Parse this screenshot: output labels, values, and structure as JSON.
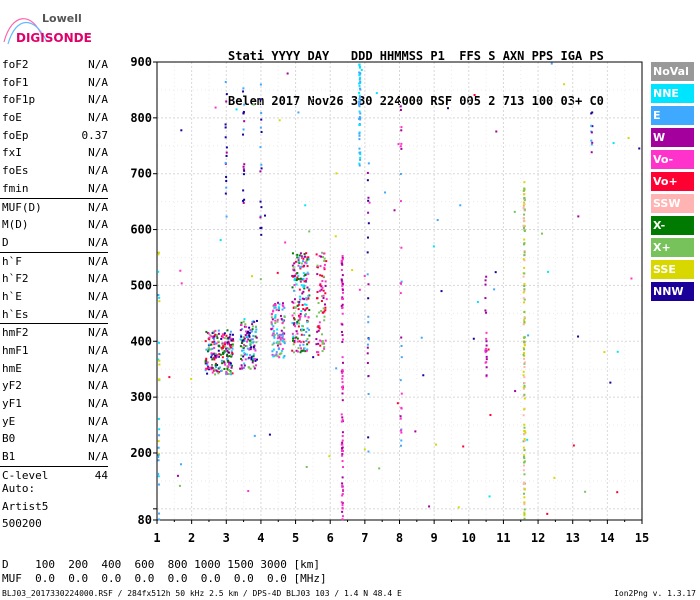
{
  "logo": {
    "top": "Lowell",
    "bottom": "DIGISONDE"
  },
  "header": {
    "line1": [
      "Stati",
      "YYYY",
      "DAY",
      "DDD",
      "HHMMSS",
      "P1",
      "FFS",
      "S",
      "AXN",
      "PPS",
      "IGA",
      "PS"
    ],
    "line2": [
      "Belem",
      "2017",
      "Nov26",
      "330",
      "224000",
      "RSF",
      "005",
      "2",
      "713",
      "100",
      "03+",
      "C0"
    ]
  },
  "params": [
    {
      "label": "foF2",
      "value": "N/A"
    },
    {
      "label": "foF1",
      "value": "N/A"
    },
    {
      "label": "foF1p",
      "value": "N/A"
    },
    {
      "label": "foE",
      "value": "N/A"
    },
    {
      "label": "foEp",
      "value": "0.37"
    },
    {
      "label": "fxI",
      "value": "N/A"
    },
    {
      "label": "foEs",
      "value": "N/A"
    },
    {
      "label": "fmin",
      "value": "N/A"
    },
    {
      "label": "MUF(D)",
      "value": "N/A"
    },
    {
      "label": "M(D)",
      "value": "N/A"
    },
    {
      "label": "D",
      "value": "N/A"
    },
    {
      "label": "h`F",
      "value": "N/A"
    },
    {
      "label": "h`F2",
      "value": "N/A"
    },
    {
      "label": "h`E",
      "value": "N/A"
    },
    {
      "label": "h`Es",
      "value": "N/A"
    },
    {
      "label": "hmF2",
      "value": "N/A"
    },
    {
      "label": "hmF1",
      "value": "N/A"
    },
    {
      "label": "hmE",
      "value": "N/A"
    },
    {
      "label": "yF2",
      "value": "N/A"
    },
    {
      "label": "yF1",
      "value": "N/A"
    },
    {
      "label": "yE",
      "value": "N/A"
    },
    {
      "label": "B0",
      "value": "N/A"
    },
    {
      "label": "B1",
      "value": "N/A"
    },
    {
      "label": "C-level",
      "value": "44"
    }
  ],
  "auto": [
    "Auto:",
    "Artist5",
    "500200"
  ],
  "legend": [
    {
      "label": "NoVal",
      "color": "#999999"
    },
    {
      "label": "NNE",
      "color": "#00e5ff"
    },
    {
      "label": "E",
      "color": "#3fa9ff"
    },
    {
      "label": "W",
      "color": "#a3009e"
    },
    {
      "label": "Vo-",
      "color": "#ff33cc"
    },
    {
      "label": "Vo+",
      "color": "#ff0033"
    },
    {
      "label": "SSW",
      "color": "#ffb3b3"
    },
    {
      "label": "X-",
      "color": "#007a00"
    },
    {
      "label": "X+",
      "color": "#77c25a"
    },
    {
      "label": "SSE",
      "color": "#d8d800"
    },
    {
      "label": "NNW",
      "color": "#1a0099"
    }
  ],
  "footer": {
    "d_label": "D",
    "d_values": [
      "100",
      "200",
      "400",
      "600",
      "800",
      "1000",
      "1500",
      "3000",
      "[km]"
    ],
    "muf_label": "MUF",
    "muf_values": [
      "0.0",
      "0.0",
      "0.0",
      "0.0",
      "0.0",
      "0.0",
      "0.0",
      "0.0",
      "[MHz]"
    ],
    "info": "BLJ03_2017330224000.RSF / 284fx512h 50 kHz 2.5 km / DPS-4D BLJ03 103 / 1.4 N 48.4 E",
    "version": "Ion2Png v. 1.3.17"
  },
  "chart_data": {
    "type": "scatter",
    "xlim": [
      1,
      15
    ],
    "ylim": [
      80,
      900
    ],
    "x_ticks": [
      1,
      2,
      3,
      4,
      5,
      6,
      7,
      8,
      9,
      10,
      11,
      12,
      13,
      14,
      15
    ],
    "y_ticks": [
      80,
      100,
      200,
      300,
      400,
      500,
      600,
      700,
      800,
      900
    ],
    "y_tick_labels": [
      "80",
      "",
      "200",
      "300",
      "400",
      "500",
      "600",
      "700",
      "800",
      "900"
    ],
    "grid": true,
    "clusters": [
      {
        "x_range": [
          2.4,
          3.2
        ],
        "y_range": [
          340,
          420
        ],
        "n": 220,
        "colors": [
          3,
          4,
          5,
          7,
          8,
          10,
          2
        ]
      },
      {
        "x_range": [
          3.4,
          3.9
        ],
        "y_range": [
          350,
          440
        ],
        "n": 120,
        "colors": [
          3,
          4,
          7,
          8,
          10,
          1,
          2
        ]
      },
      {
        "x_range": [
          4.3,
          4.7
        ],
        "y_range": [
          370,
          470
        ],
        "n": 110,
        "colors": [
          4,
          3,
          2,
          1,
          8
        ]
      },
      {
        "x_range": [
          4.9,
          5.4
        ],
        "y_range": [
          380,
          560
        ],
        "n": 200,
        "colors": [
          4,
          5,
          3,
          1,
          2,
          7,
          8
        ]
      },
      {
        "x_range": [
          5.6,
          5.9
        ],
        "y_range": [
          380,
          560
        ],
        "n": 80,
        "colors": [
          4,
          3,
          8,
          5
        ]
      }
    ],
    "columns": [
      {
        "x": 6.35,
        "y_range": [
          80,
          560
        ],
        "n": 90,
        "colors": [
          3,
          4
        ]
      },
      {
        "x": 6.85,
        "y_range": [
          700,
          900
        ],
        "n": 50,
        "colors": [
          2,
          1
        ]
      },
      {
        "x": 11.6,
        "y_range": [
          80,
          690
        ],
        "n": 140,
        "colors": [
          9,
          8,
          6
        ]
      },
      {
        "x": 10.5,
        "y_range": [
          330,
          520
        ],
        "n": 22,
        "colors": [
          3,
          4
        ]
      },
      {
        "x": 8.05,
        "y_range": [
          150,
          850
        ],
        "n": 28,
        "colors": [
          2,
          3,
          4
        ]
      },
      {
        "x": 7.1,
        "y_range": [
          200,
          720
        ],
        "n": 25,
        "colors": [
          2,
          3,
          10
        ]
      },
      {
        "x": 3.0,
        "y_range": [
          600,
          880
        ],
        "n": 16,
        "colors": [
          3,
          2,
          10
        ]
      },
      {
        "x": 3.5,
        "y_range": [
          640,
          890
        ],
        "n": 18,
        "colors": [
          10,
          2,
          3
        ]
      },
      {
        "x": 4.0,
        "y_range": [
          560,
          890
        ],
        "n": 16,
        "colors": [
          3,
          10,
          2
        ]
      },
      {
        "x": 13.55,
        "y_range": [
          730,
          810
        ],
        "n": 10,
        "colors": [
          3,
          10,
          2
        ]
      },
      {
        "x": 1.05,
        "y_range": [
          80,
          560
        ],
        "n": 30,
        "colors": [
          2,
          1,
          9
        ]
      }
    ],
    "scatter_colors": [
      1,
      2,
      3,
      4,
      5,
      10,
      8,
      9
    ],
    "scatter_n": 90
  }
}
